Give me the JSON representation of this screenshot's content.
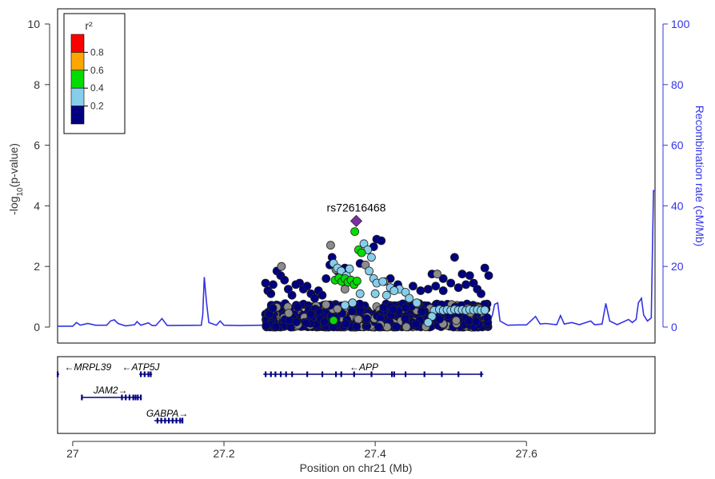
{
  "chart_data": {
    "type": "scatter",
    "lead_snp": {
      "name": "rs72616468",
      "x": 27.375,
      "y": 3.5,
      "color": "#7b2fa5"
    },
    "y_axis_left": {
      "label_pre": "-log",
      "label_sub": "10",
      "label_post": "(p-value)",
      "range": [
        0,
        10
      ],
      "ticks": [
        "0",
        "2",
        "4",
        "6",
        "8",
        "10"
      ]
    },
    "y_axis_right": {
      "label": "Recombination rate (cM/Mb)",
      "range": [
        0,
        100
      ],
      "ticks": [
        "0",
        "20",
        "40",
        "60",
        "80",
        "100"
      ],
      "color": "#3333e6"
    },
    "x_axis": {
      "label": "Position on chr21 (Mb)",
      "range": [
        26.98,
        27.77
      ],
      "ticks": [
        "27",
        "27.2",
        "27.4",
        "27.6"
      ]
    },
    "legend": {
      "title": "r²",
      "placement": "top-left",
      "bins": [
        {
          "label": "0.8",
          "color": "#ff0000"
        },
        {
          "label": "0.6",
          "color": "#ffa500"
        },
        {
          "label": "0.4",
          "color": "#00dd00"
        },
        {
          "label": "0.2",
          "color": "#87ceeb"
        },
        {
          "label": "",
          "color": "#000080"
        }
      ]
    },
    "colors": {
      "very_low": "#000080",
      "low": "#87ceeb",
      "mid": "#00dd00",
      "none": "#8c8c8c",
      "recomb": "#3333e6",
      "gene": "#000080"
    },
    "highlight_points": {
      "green": [
        [
          27.373,
          3.15
        ],
        [
          27.378,
          2.55
        ],
        [
          27.382,
          2.45
        ],
        [
          27.347,
          1.55
        ],
        [
          27.352,
          1.62
        ],
        [
          27.356,
          1.5
        ],
        [
          27.36,
          1.6
        ],
        [
          27.364,
          1.48
        ],
        [
          27.368,
          1.55
        ],
        [
          27.372,
          1.4
        ],
        [
          27.376,
          1.52
        ],
        [
          27.345,
          0.22
        ]
      ],
      "lightblue": [
        [
          27.345,
          2.1
        ],
        [
          27.35,
          1.95
        ],
        [
          27.355,
          1.85
        ],
        [
          27.362,
          1.7
        ],
        [
          27.366,
          1.92
        ],
        [
          27.385,
          2.75
        ],
        [
          27.39,
          2.55
        ],
        [
          27.395,
          2.3
        ],
        [
          27.392,
          1.85
        ],
        [
          27.398,
          1.6
        ],
        [
          27.402,
          1.45
        ],
        [
          27.41,
          1.5
        ],
        [
          27.42,
          1.3
        ],
        [
          27.432,
          1.25
        ],
        [
          27.44,
          1.15
        ],
        [
          27.445,
          0.95
        ],
        [
          27.455,
          0.8
        ],
        [
          27.4,
          1.1
        ],
        [
          27.415,
          1.05
        ],
        [
          27.425,
          1.2
        ],
        [
          27.478,
          0.55
        ],
        [
          27.485,
          0.58
        ],
        [
          27.49,
          0.55
        ],
        [
          27.495,
          0.57
        ],
        [
          27.5,
          0.55
        ],
        [
          27.505,
          0.58
        ],
        [
          27.51,
          0.56
        ],
        [
          27.515,
          0.57
        ],
        [
          27.52,
          0.55
        ],
        [
          27.525,
          0.58
        ],
        [
          27.53,
          0.56
        ],
        [
          27.535,
          0.57
        ],
        [
          27.54,
          0.55
        ],
        [
          27.545,
          0.56
        ],
        [
          27.475,
          0.35
        ],
        [
          27.47,
          0.15
        ],
        [
          27.36,
          0.72
        ],
        [
          27.37,
          0.8
        ],
        [
          27.38,
          1.1
        ]
      ],
      "navy": [
        [
          27.35,
          1.85
        ],
        [
          27.343,
          2.3
        ],
        [
          27.36,
          1.95
        ],
        [
          27.38,
          2.1
        ],
        [
          27.398,
          2.65
        ],
        [
          27.402,
          2.9
        ],
        [
          27.408,
          2.85
        ],
        [
          27.3,
          1.45
        ],
        [
          27.305,
          1.25
        ],
        [
          27.315,
          1.1
        ],
        [
          27.325,
          1.2
        ],
        [
          27.335,
          1.6
        ],
        [
          27.34,
          2.05
        ],
        [
          27.27,
          1.85
        ],
        [
          27.275,
          1.7
        ],
        [
          27.28,
          1.55
        ],
        [
          27.265,
          1.4
        ],
        [
          27.255,
          1.45
        ],
        [
          27.258,
          1.2
        ],
        [
          27.262,
          1.1
        ],
        [
          27.285,
          1.25
        ],
        [
          27.29,
          1.05
        ],
        [
          27.295,
          1.4
        ],
        [
          27.42,
          1.6
        ],
        [
          27.43,
          1.4
        ],
        [
          27.45,
          1.35
        ],
        [
          27.46,
          1.2
        ],
        [
          27.47,
          1.25
        ],
        [
          27.475,
          1.75
        ],
        [
          27.48,
          1.35
        ],
        [
          27.49,
          1.2
        ],
        [
          27.5,
          1.45
        ],
        [
          27.51,
          1.3
        ],
        [
          27.52,
          1.4
        ],
        [
          27.515,
          1.75
        ],
        [
          27.525,
          1.7
        ],
        [
          27.53,
          1.45
        ],
        [
          27.505,
          2.3
        ],
        [
          27.49,
          1.6
        ],
        [
          27.535,
          1.25
        ],
        [
          27.545,
          1.95
        ],
        [
          27.55,
          1.7
        ],
        [
          27.54,
          1.1
        ],
        [
          27.31,
          1.35
        ],
        [
          27.32,
          0.95
        ],
        [
          27.33,
          1.05
        ]
      ],
      "gray": [
        [
          27.341,
          2.7
        ],
        [
          27.276,
          2.0
        ],
        [
          27.482,
          1.75
        ],
        [
          27.387,
          2.05
        ],
        [
          27.412,
          1.5
        ],
        [
          27.348,
          1.9
        ],
        [
          27.36,
          1.25
        ]
      ]
    },
    "band": {
      "x_start": 27.255,
      "x_end": 27.55,
      "y_max": 0.78,
      "count": 850
    },
    "recombination": [
      [
        26.98,
        0.3
      ],
      [
        27.0,
        0.3
      ],
      [
        27.005,
        1.5
      ],
      [
        27.01,
        0.6
      ],
      [
        27.02,
        1.2
      ],
      [
        27.03,
        0.6
      ],
      [
        27.045,
        0.6
      ],
      [
        27.05,
        2.0
      ],
      [
        27.055,
        2.4
      ],
      [
        27.06,
        1.2
      ],
      [
        27.07,
        0.4
      ],
      [
        27.082,
        0.8
      ],
      [
        27.085,
        1.8
      ],
      [
        27.09,
        0.6
      ],
      [
        27.1,
        1.4
      ],
      [
        27.105,
        0.5
      ],
      [
        27.11,
        0.5
      ],
      [
        27.118,
        2.8
      ],
      [
        27.125,
        0.5
      ],
      [
        27.17,
        0.6
      ],
      [
        27.172,
        4.0
      ],
      [
        27.174,
        16.5
      ],
      [
        27.177,
        8.0
      ],
      [
        27.18,
        1.5
      ],
      [
        27.19,
        0.6
      ],
      [
        27.195,
        2.0
      ],
      [
        27.2,
        0.6
      ],
      [
        27.22,
        0.5
      ],
      [
        27.25,
        0.6
      ],
      [
        27.3,
        0.6
      ],
      [
        27.35,
        0.6
      ],
      [
        27.4,
        0.6
      ],
      [
        27.45,
        0.6
      ],
      [
        27.5,
        0.6
      ],
      [
        27.54,
        0.6
      ],
      [
        27.55,
        1.0
      ],
      [
        27.555,
        4.0
      ],
      [
        27.558,
        7.5
      ],
      [
        27.562,
        8.0
      ],
      [
        27.565,
        2.0
      ],
      [
        27.575,
        0.6
      ],
      [
        27.59,
        0.7
      ],
      [
        27.6,
        0.7
      ],
      [
        27.612,
        3.5
      ],
      [
        27.618,
        1.0
      ],
      [
        27.625,
        1.2
      ],
      [
        27.64,
        0.8
      ],
      [
        27.645,
        3.8
      ],
      [
        27.65,
        1.0
      ],
      [
        27.66,
        1.5
      ],
      [
        27.67,
        0.8
      ],
      [
        27.685,
        2.0
      ],
      [
        27.69,
        0.8
      ],
      [
        27.7,
        1.0
      ],
      [
        27.705,
        7.8
      ],
      [
        27.71,
        2.0
      ],
      [
        27.72,
        0.8
      ],
      [
        27.735,
        2.5
      ],
      [
        27.74,
        1.5
      ],
      [
        27.745,
        2.5
      ],
      [
        27.748,
        8.0
      ],
      [
        27.752,
        9.5
      ],
      [
        27.755,
        4.0
      ],
      [
        27.76,
        2.0
      ],
      [
        27.765,
        3.0
      ],
      [
        27.768,
        45.0
      ],
      [
        27.77,
        45.0
      ]
    ],
    "genes": [
      {
        "name": "MRPL39",
        "arrow": "left",
        "start": 26.98,
        "end": 26.982,
        "row": 0,
        "label_x": 27.02,
        "exons": [
          26.98
        ]
      },
      {
        "name": "ATP5J",
        "arrow": "left",
        "start": 27.088,
        "end": 27.105,
        "row": 0,
        "label_x": 27.09,
        "exons": [
          27.09,
          27.095,
          27.1,
          27.103
        ]
      },
      {
        "name": "APP",
        "arrow": "left",
        "start": 27.252,
        "end": 27.543,
        "row": 0,
        "label_x": 27.385,
        "exons": [
          27.255,
          27.262,
          27.268,
          27.275,
          27.282,
          27.29,
          27.31,
          27.33,
          27.348,
          27.355,
          27.372,
          27.395,
          27.422,
          27.425,
          27.44,
          27.465,
          27.488,
          27.51,
          27.54
        ]
      },
      {
        "name": "JAM2",
        "arrow": "right",
        "start": 27.012,
        "end": 27.09,
        "row": 1,
        "label_x": 27.05,
        "exons": [
          27.012,
          27.065,
          27.07,
          27.075,
          27.08,
          27.083,
          27.086,
          27.09
        ]
      },
      {
        "name": "GABPA",
        "arrow": "right",
        "start": 27.108,
        "end": 27.145,
        "row": 2,
        "label_x": 27.125,
        "exons": [
          27.112,
          27.117,
          27.122,
          27.127,
          27.132,
          27.137,
          27.142,
          27.145
        ]
      }
    ]
  }
}
